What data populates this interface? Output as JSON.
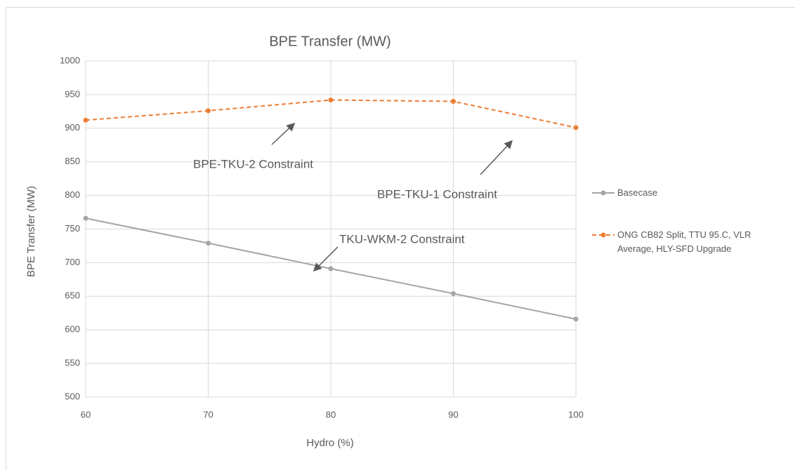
{
  "chart_data": {
    "type": "line",
    "title": "BPE Transfer (MW)",
    "x_label": "Hydro (%)",
    "y_label": "BPE Transfer (MW)",
    "x": [
      60,
      70,
      80,
      90,
      100
    ],
    "series": [
      {
        "name": "Basecase",
        "color": "#a5a5a5",
        "dashed": false,
        "values": [
          766,
          729,
          691,
          654,
          616
        ]
      },
      {
        "name": "ONG CB82 Split, TTU 95.C, VLR Average, HLY-SFD Upgrade",
        "color": "#ed7d31",
        "dashed": true,
        "values": [
          912,
          926,
          942,
          940,
          901
        ]
      }
    ],
    "xlim": [
      60,
      100
    ],
    "xticks": [
      60,
      70,
      80,
      90,
      100
    ],
    "ylim": [
      500,
      1000
    ],
    "yticks": [
      500,
      550,
      600,
      650,
      700,
      750,
      800,
      850,
      900,
      950,
      1000
    ],
    "grid": true,
    "legend": "right",
    "annotations": [
      "BPE-TKU-2 Constraint",
      "BPE-TKU-1 Constraint",
      "TKU-WKM-2 Constraint"
    ]
  }
}
